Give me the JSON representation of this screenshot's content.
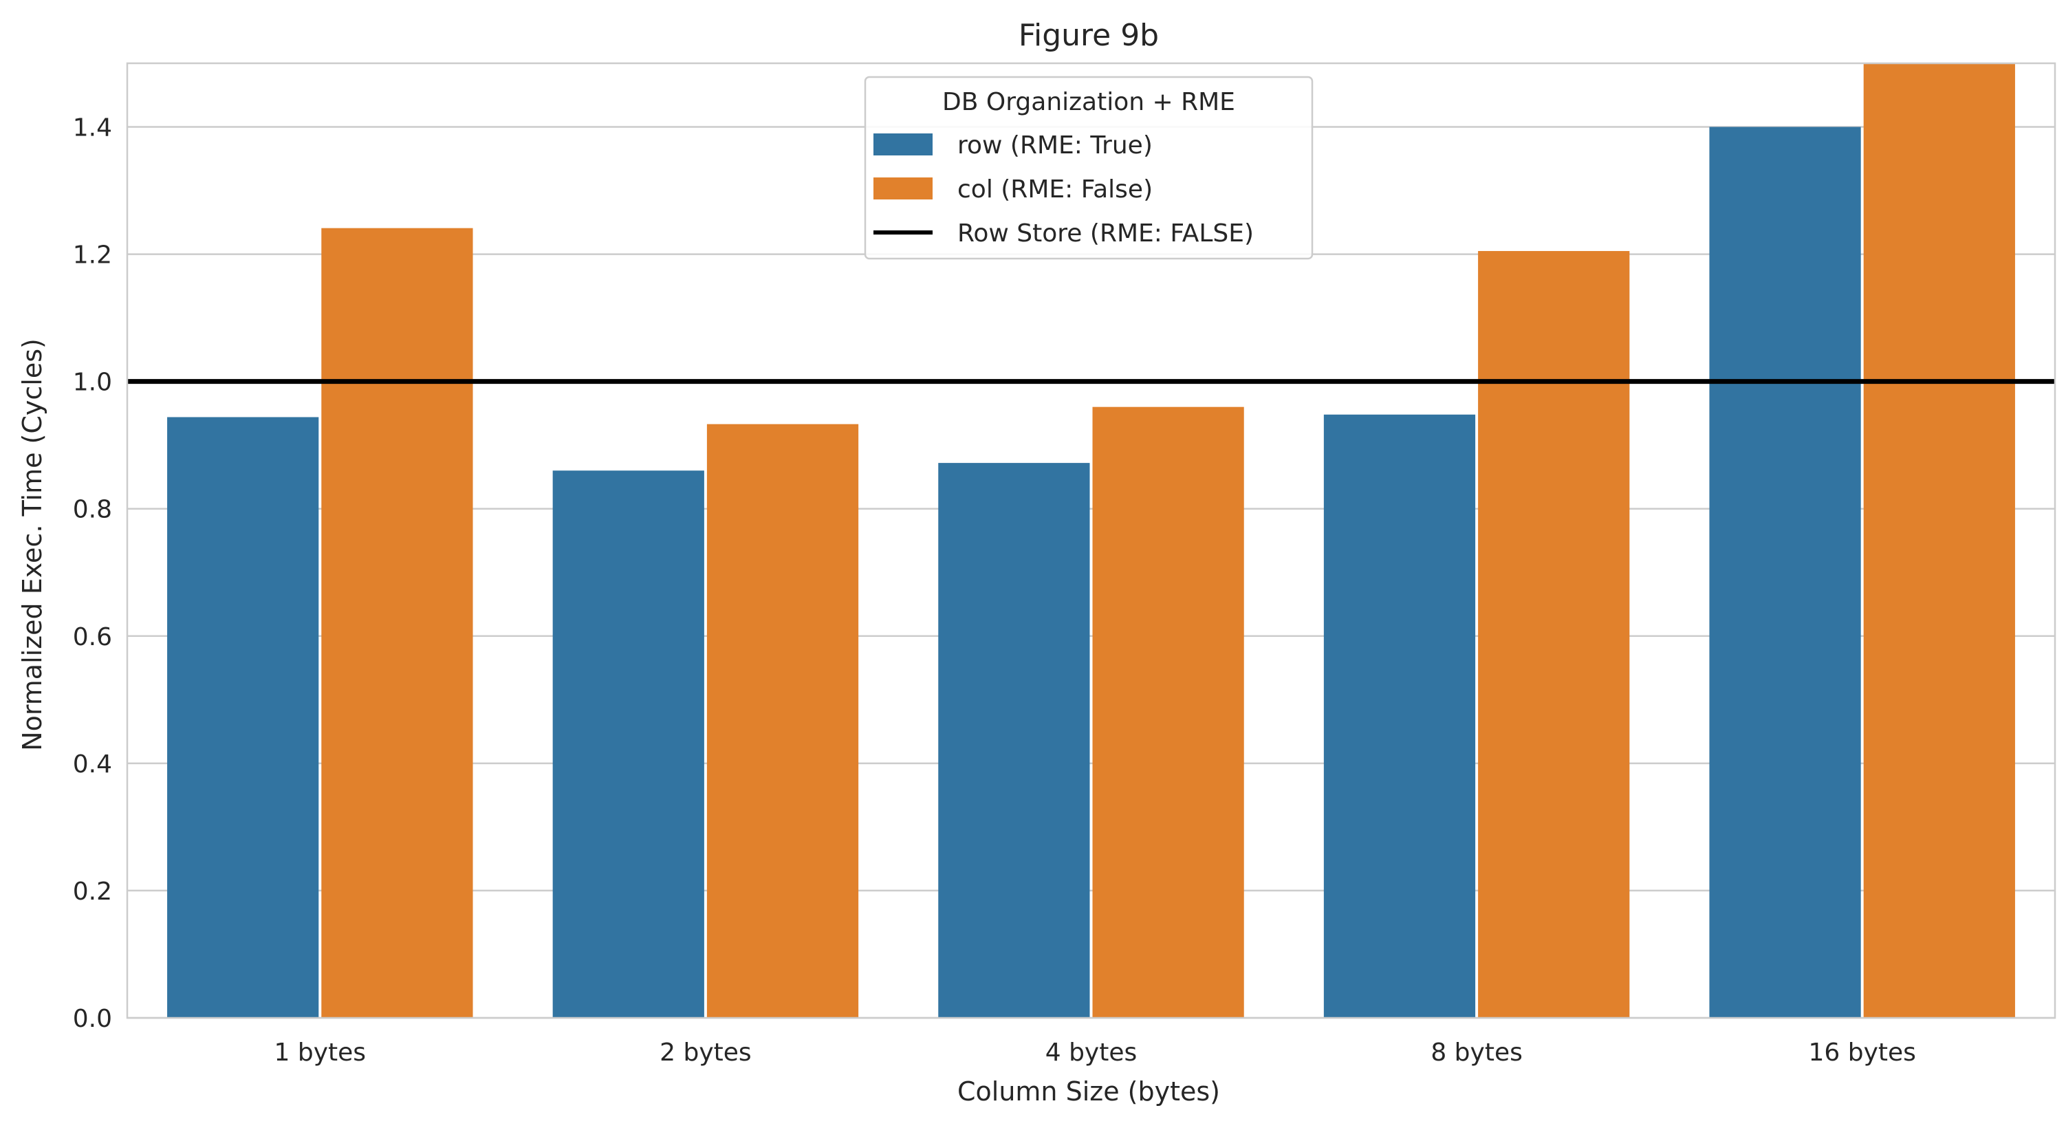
{
  "chart_data": {
    "type": "bar",
    "title": "Figure 9b",
    "xlabel": "Column Size (bytes)",
    "ylabel": "Normalized Exec. Time (Cycles)",
    "categories": [
      "1 bytes",
      "2 bytes",
      "4 bytes",
      "8 bytes",
      "16 bytes"
    ],
    "series": [
      {
        "name": "row (RME: True)",
        "color": "#3274a1",
        "values": [
          0.944,
          0.86,
          0.872,
          0.948,
          1.4
        ]
      },
      {
        "name": "col (RME: False)",
        "color": "#e1812c",
        "values": [
          1.241,
          0.933,
          0.96,
          1.205,
          1.5
        ]
      }
    ],
    "reference_line": {
      "name": "Row Store (RME: FALSE)",
      "value": 1.0,
      "color": "#000000"
    },
    "ylim": [
      0,
      1.5
    ],
    "yticks": [
      0.0,
      0.2,
      0.4,
      0.6,
      0.8,
      1.0,
      1.2,
      1.4
    ],
    "ytick_labels": [
      "0.0",
      "0.2",
      "0.4",
      "0.6",
      "0.8",
      "1.0",
      "1.2",
      "1.4"
    ],
    "grid": "horizontal",
    "legend": {
      "title": "DB Organization + RME",
      "placement": "top-center"
    }
  }
}
